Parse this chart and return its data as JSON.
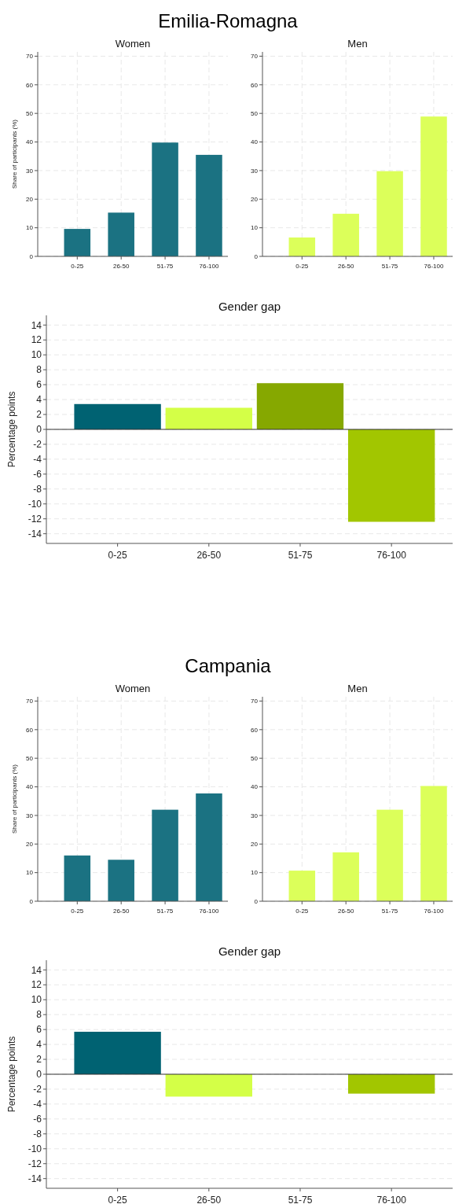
{
  "chart_data": [
    {
      "type": "bar",
      "title": "Women",
      "annotations": [
        "Emilia-Romagna"
      ],
      "ylabel": "Share of participants (%)",
      "categories": [
        "0-25",
        "26-50",
        "51-75",
        "76-100"
      ],
      "values": [
        9.6,
        15.3,
        39.8,
        35.5
      ],
      "color": "#1b7282",
      "ylim": [
        0,
        71.5
      ],
      "yticks": [
        0,
        10,
        20,
        30,
        40,
        50,
        60,
        70
      ],
      "grid": true
    },
    {
      "type": "bar",
      "title": "Men",
      "categories": [
        "0-25",
        "26-50",
        "51-75",
        "76-100"
      ],
      "values": [
        6.6,
        14.9,
        29.8,
        48.9
      ],
      "color": "#dcff5a",
      "ylim": [
        0,
        71.5
      ],
      "yticks": [
        0,
        10,
        20,
        30,
        40,
        50,
        60,
        70
      ],
      "grid": true
    },
    {
      "type": "bar",
      "title": "Gender gap",
      "ylabel": "Percentage points",
      "categories": [
        "0-25",
        "26-50",
        "51-75",
        "76-100"
      ],
      "values": [
        3.4,
        2.9,
        6.2,
        -12.4
      ],
      "colors": [
        "#006272",
        "#d4ff47",
        "#86a800",
        "#a2c600"
      ],
      "ylim": [
        -15.3,
        15.3
      ],
      "yticks": [
        -14,
        -12,
        -10,
        -8,
        -6,
        -4,
        -2,
        0,
        2,
        4,
        6,
        8,
        10,
        12,
        14
      ],
      "grid": "y",
      "ref_lines": [
        {
          "axis": "y",
          "value": 0,
          "color": "#333333"
        }
      ]
    },
    {
      "type": "bar",
      "title": "Women",
      "annotations": [
        "Campania"
      ],
      "ylabel": "Share of participants (%)",
      "categories": [
        "0-25",
        "26-50",
        "51-75",
        "76-100"
      ],
      "values": [
        16.0,
        14.5,
        32.0,
        37.7
      ],
      "color": "#1b7282",
      "ylim": [
        0,
        71.5
      ],
      "yticks": [
        0,
        10,
        20,
        30,
        40,
        50,
        60,
        70
      ],
      "grid": true
    },
    {
      "type": "bar",
      "title": "Men",
      "categories": [
        "0-25",
        "26-50",
        "51-75",
        "76-100"
      ],
      "values": [
        10.7,
        17.1,
        32.0,
        40.3
      ],
      "color": "#dcff5a",
      "ylim": [
        0,
        71.5
      ],
      "yticks": [
        0,
        10,
        20,
        30,
        40,
        50,
        60,
        70
      ],
      "grid": true
    },
    {
      "type": "bar",
      "title": "Gender gap",
      "ylabel": "Percentage points",
      "categories": [
        "0-25",
        "26-50",
        "51-75",
        "76-100"
      ],
      "values": [
        5.7,
        -3.0,
        0,
        -2.6
      ],
      "colors": [
        "#006272",
        "#d4ff47",
        "#86a800",
        "#a2c600"
      ],
      "ylim": [
        -15.3,
        15.3
      ],
      "yticks": [
        -14,
        -12,
        -10,
        -8,
        -6,
        -4,
        -2,
        0,
        2,
        4,
        6,
        8,
        10,
        12,
        14
      ],
      "grid": "y",
      "ref_lines": [
        {
          "axis": "y",
          "value": 0,
          "color": "#333333"
        }
      ]
    }
  ]
}
